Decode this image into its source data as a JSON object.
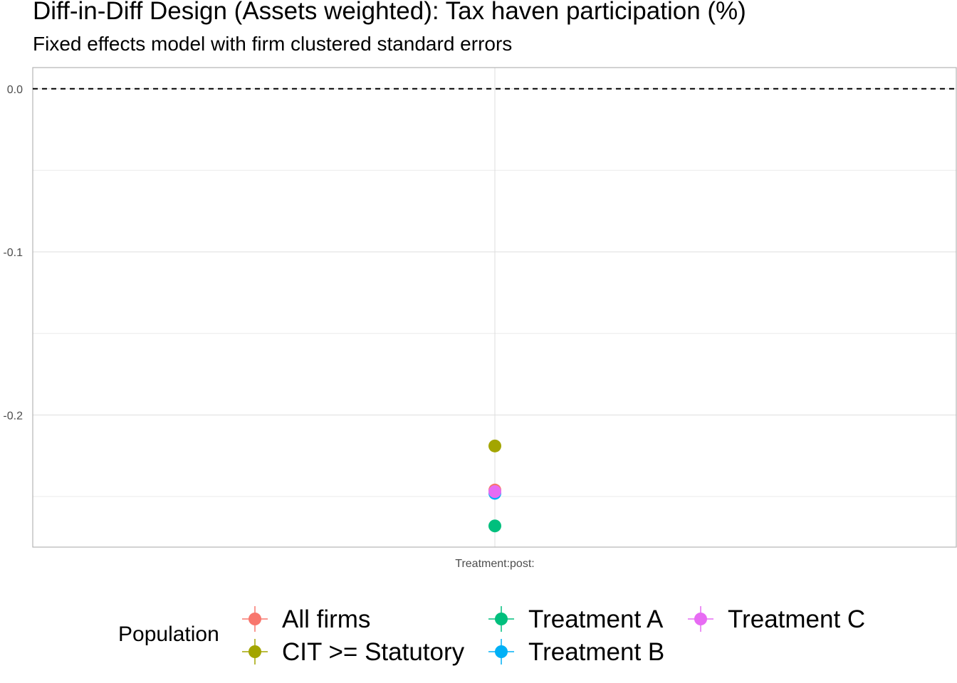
{
  "chart_data": {
    "type": "scatter",
    "title": "Diff-in-Diff Design (Assets weighted): Tax haven participation (%)",
    "subtitle": "Fixed effects model with firm clustered standard errors",
    "xlabel": "",
    "ylabel": "",
    "categories": [
      "Treatment:post:"
    ],
    "y_ticks": [
      0.0,
      -0.1,
      -0.2
    ],
    "y_tick_labels": [
      "0.0",
      "-0.1",
      "-0.2"
    ],
    "ylim": [
      -0.281,
      0.013
    ],
    "reference_line": {
      "y": 0.0,
      "style": "dashed"
    },
    "grid": true,
    "legend": {
      "title": "Population",
      "position": "bottom"
    },
    "series": [
      {
        "name": "All firms",
        "color": "#F8766D",
        "values": [
          -0.246
        ]
      },
      {
        "name": "CIT >= Statutory",
        "color": "#A3A500",
        "values": [
          -0.219
        ]
      },
      {
        "name": "Treatment A",
        "color": "#00BF7D",
        "values": [
          -0.268
        ]
      },
      {
        "name": "Treatment B",
        "color": "#00B0F6",
        "values": [
          -0.248
        ]
      },
      {
        "name": "Treatment C",
        "color": "#E76BF3",
        "values": [
          -0.247
        ]
      }
    ]
  }
}
